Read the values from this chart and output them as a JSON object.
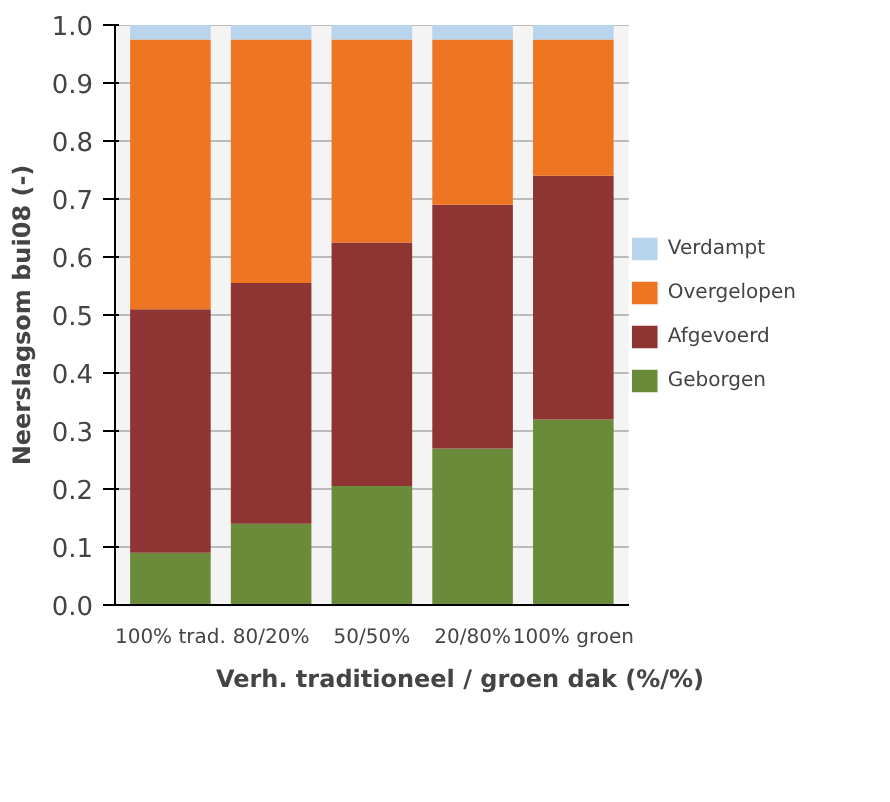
{
  "chart_data": {
    "type": "bar",
    "stacked": true,
    "xlabel": "Verh. traditioneel / groen dak (%/%)",
    "ylabel": "Neerslagsom bui08 (-)",
    "categories": [
      "100% trad.",
      "80/20%",
      "50/50%",
      "20/80%",
      "100% groen"
    ],
    "series": [
      {
        "name": "Geborgen",
        "color": "#6a8c3a",
        "values": [
          0.09,
          0.14,
          0.205,
          0.27,
          0.32
        ]
      },
      {
        "name": "Afgevoerd",
        "color": "#8e3433",
        "values": [
          0.42,
          0.415,
          0.42,
          0.42,
          0.42
        ]
      },
      {
        "name": "Overgelopen",
        "color": "#ee7522",
        "values": [
          0.465,
          0.42,
          0.35,
          0.285,
          0.235
        ]
      },
      {
        "name": "Verdampt",
        "color": "#b9d5ee",
        "values": [
          0.025,
          0.025,
          0.025,
          0.025,
          0.025
        ]
      }
    ],
    "ylim": [
      0,
      1.0
    ],
    "yticks": [
      {
        "value": 0,
        "label": "0.0"
      },
      0.1,
      0.2,
      0.3,
      0.4,
      0.5,
      0.6,
      0.7,
      0.8,
      0.9,
      {
        "value": 1,
        "label": "1.0"
      }
    ],
    "grid": "y",
    "legend": "right"
  }
}
